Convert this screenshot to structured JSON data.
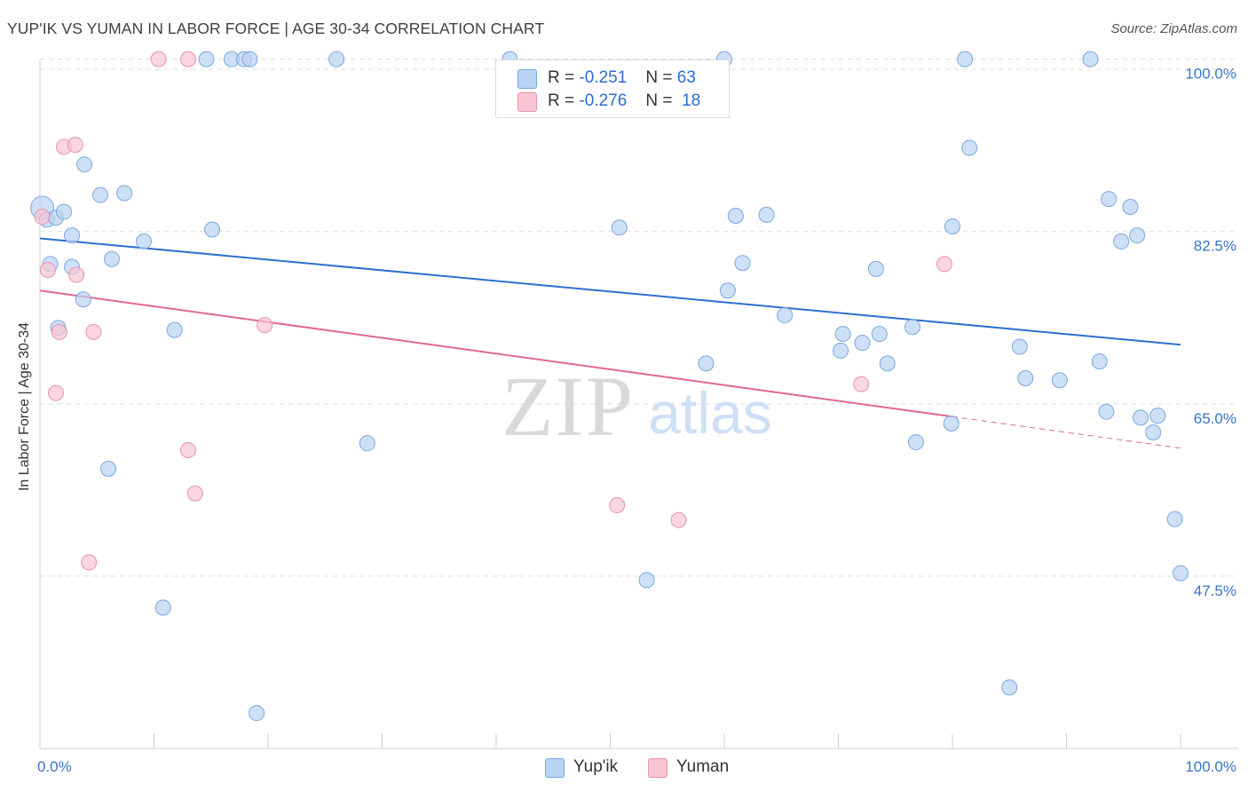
{
  "title": "YUP'IK VS YUMAN IN LABOR FORCE | AGE 30-34 CORRELATION CHART",
  "source": "Source: ZipAtlas.com",
  "legend": {
    "rows": [
      {
        "r_label": "R =",
        "r_value": "-0.251",
        "n_label": "N =",
        "n_value": "63"
      },
      {
        "r_label": "R =",
        "r_value": "-0.276",
        "n_label": "N =",
        "n_value": "18"
      }
    ]
  },
  "watermark": {
    "zip": "ZIP",
    "atlas": "atlas"
  },
  "colors": {
    "yupik_fill": "#b9d3f2",
    "yupik_stroke": "#7aa7e0",
    "yupik_line": "#2f6fce",
    "yuman_fill": "#f8c5d3",
    "yuman_stroke": "#e992ad",
    "yuman_line": "#e06890",
    "grid": "#dddddd",
    "axis_text": "#3a74c8"
  },
  "chart_data": {
    "type": "scatter",
    "title": "YUP'IK VS YUMAN IN LABOR FORCE | AGE 30-34 CORRELATION CHART",
    "xlabel": "",
    "ylabel": "In Labor Force | Age 30-34",
    "xlim": [
      0,
      100
    ],
    "ylim": [
      30,
      101.5
    ],
    "x_tick_labels": [
      "0.0%",
      "100.0%"
    ],
    "y_ticks": [
      47.5,
      65.0,
      82.5,
      100.0
    ],
    "y_tick_labels": [
      "47.5%",
      "65.0%",
      "82.5%",
      "100.0%"
    ],
    "series": [
      {
        "name": "Yup'ik",
        "color": "#b9d3f2",
        "points": [
          [
            0.2,
            84.9
          ],
          [
            0.6,
            83.7
          ],
          [
            1.4,
            83.9
          ],
          [
            0.9,
            79.2
          ],
          [
            2.1,
            84.5
          ],
          [
            2.8,
            82.1
          ],
          [
            1.6,
            72.7
          ],
          [
            2.8,
            78.9
          ],
          [
            3.9,
            89.3
          ],
          [
            5.3,
            86.2
          ],
          [
            7.4,
            86.4
          ],
          [
            3.8,
            75.6
          ],
          [
            6.3,
            79.7
          ],
          [
            9.1,
            81.5
          ],
          [
            11.8,
            72.5
          ],
          [
            15.1,
            82.7
          ],
          [
            6.0,
            58.4
          ],
          [
            10.8,
            44.3
          ],
          [
            14.6,
            100
          ],
          [
            16.8,
            100
          ],
          [
            17.9,
            100
          ],
          [
            18.4,
            100
          ],
          [
            19.0,
            33.6
          ],
          [
            26.0,
            100
          ],
          [
            28.7,
            61.0
          ],
          [
            41.2,
            100
          ],
          [
            50.8,
            82.9
          ],
          [
            53.2,
            47.1
          ],
          [
            58.4,
            69.1
          ],
          [
            60.0,
            100
          ],
          [
            60.3,
            76.5
          ],
          [
            61.0,
            84.1
          ],
          [
            61.6,
            79.3
          ],
          [
            63.7,
            84.2
          ],
          [
            65.3,
            74.0
          ],
          [
            70.2,
            70.4
          ],
          [
            70.4,
            72.1
          ],
          [
            72.1,
            71.2
          ],
          [
            73.3,
            78.7
          ],
          [
            73.6,
            72.1
          ],
          [
            74.3,
            69.1
          ],
          [
            76.5,
            72.8
          ],
          [
            76.8,
            61.1
          ],
          [
            79.9,
            63.0
          ],
          [
            80.0,
            83.0
          ],
          [
            81.1,
            100
          ],
          [
            81.5,
            91.0
          ],
          [
            85.0,
            36.2
          ],
          [
            85.9,
            70.8
          ],
          [
            86.4,
            67.6
          ],
          [
            89.4,
            67.4
          ],
          [
            92.1,
            100
          ],
          [
            92.9,
            69.3
          ],
          [
            93.5,
            64.2
          ],
          [
            93.7,
            85.8
          ],
          [
            94.8,
            81.5
          ],
          [
            95.6,
            85.0
          ],
          [
            96.2,
            82.1
          ],
          [
            96.5,
            63.6
          ],
          [
            97.6,
            62.1
          ],
          [
            98.0,
            63.8
          ],
          [
            99.5,
            53.3
          ],
          [
            100,
            47.8
          ]
        ]
      },
      {
        "name": "Yuman",
        "color": "#f8c5d3",
        "points": [
          [
            0.2,
            84.0
          ],
          [
            0.7,
            78.6
          ],
          [
            1.7,
            72.3
          ],
          [
            1.4,
            66.1
          ],
          [
            2.1,
            91.1
          ],
          [
            3.1,
            91.3
          ],
          [
            3.2,
            78.1
          ],
          [
            4.7,
            72.3
          ],
          [
            10.4,
            100
          ],
          [
            13.0,
            60.3
          ],
          [
            13.6,
            55.9
          ],
          [
            13.0,
            100
          ],
          [
            4.3,
            48.9
          ],
          [
            19.7,
            73.0
          ],
          [
            50.6,
            54.7
          ],
          [
            56.0,
            53.2
          ],
          [
            72.0,
            67.0
          ],
          [
            79.3,
            79.2
          ]
        ]
      }
    ],
    "trendlines": [
      {
        "series": "Yup'ik",
        "x": [
          0,
          100
        ],
        "y": [
          81.8,
          71.0
        ],
        "style": "solid"
      },
      {
        "series": "Yuman",
        "x": [
          0,
          80
        ],
        "y": [
          76.5,
          63.7
        ],
        "style": "solid"
      },
      {
        "series": "Yuman",
        "x": [
          80,
          100
        ],
        "y": [
          63.7,
          60.5
        ],
        "style": "dashed"
      }
    ]
  }
}
